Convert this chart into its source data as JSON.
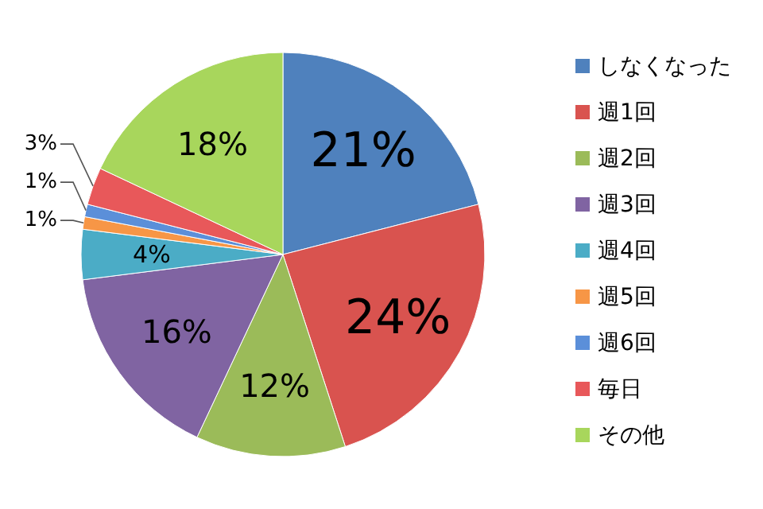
{
  "chart_data": {
    "type": "pie",
    "categories": [
      "しなくなった",
      "週1回",
      "週2回",
      "週3回",
      "週4回",
      "週5回",
      "週6回",
      "毎日",
      "その他"
    ],
    "values": [
      21,
      24,
      12,
      16,
      4,
      1,
      1,
      3,
      18
    ],
    "colors": [
      "#4f81bd",
      "#d9534f",
      "#9bbb59",
      "#8064a2",
      "#4bacc6",
      "#f79646",
      "#5b8fd9",
      "#e8585a",
      "#a8d65c"
    ],
    "value_labels": [
      "21%",
      "24%",
      "12%",
      "16%",
      "4%",
      "1%",
      "1%",
      "3%",
      "18%"
    ],
    "legend": "right"
  }
}
